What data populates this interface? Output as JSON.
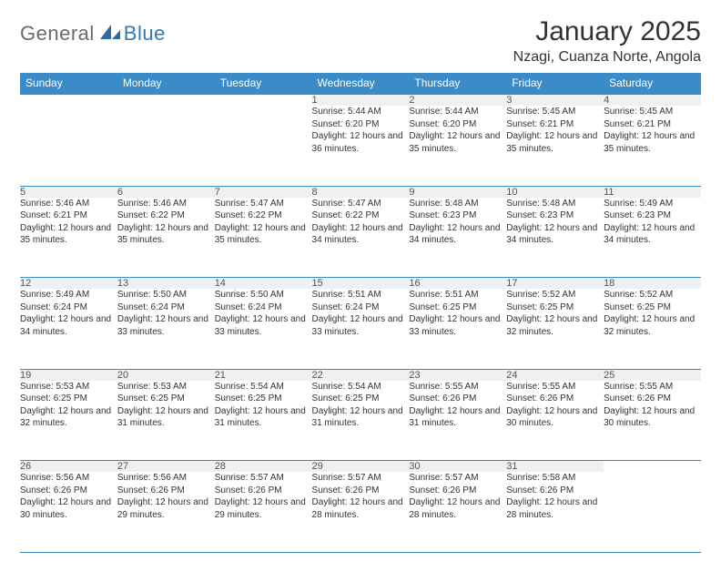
{
  "brand": {
    "general": "General",
    "blue": "Blue"
  },
  "colors": {
    "header_bg": "#3b8bc8",
    "header_text": "#ffffff",
    "daynum_bg": "#eef0f1",
    "border": "#3b8bc8",
    "title": "#333333",
    "logo_gray": "#6a6a6a",
    "logo_blue": "#3279b7"
  },
  "title": "January 2025",
  "location": "Nzagi, Cuanza Norte, Angola",
  "weekday_headers": [
    "Sunday",
    "Monday",
    "Tuesday",
    "Wednesday",
    "Thursday",
    "Friday",
    "Saturday"
  ],
  "weeks": [
    [
      null,
      null,
      null,
      {
        "day": "1",
        "sunrise": "Sunrise: 5:44 AM",
        "sunset": "Sunset: 6:20 PM",
        "daylight": "Daylight: 12 hours and 36 minutes."
      },
      {
        "day": "2",
        "sunrise": "Sunrise: 5:44 AM",
        "sunset": "Sunset: 6:20 PM",
        "daylight": "Daylight: 12 hours and 35 minutes."
      },
      {
        "day": "3",
        "sunrise": "Sunrise: 5:45 AM",
        "sunset": "Sunset: 6:21 PM",
        "daylight": "Daylight: 12 hours and 35 minutes."
      },
      {
        "day": "4",
        "sunrise": "Sunrise: 5:45 AM",
        "sunset": "Sunset: 6:21 PM",
        "daylight": "Daylight: 12 hours and 35 minutes."
      }
    ],
    [
      {
        "day": "5",
        "sunrise": "Sunrise: 5:46 AM",
        "sunset": "Sunset: 6:21 PM",
        "daylight": "Daylight: 12 hours and 35 minutes."
      },
      {
        "day": "6",
        "sunrise": "Sunrise: 5:46 AM",
        "sunset": "Sunset: 6:22 PM",
        "daylight": "Daylight: 12 hours and 35 minutes."
      },
      {
        "day": "7",
        "sunrise": "Sunrise: 5:47 AM",
        "sunset": "Sunset: 6:22 PM",
        "daylight": "Daylight: 12 hours and 35 minutes."
      },
      {
        "day": "8",
        "sunrise": "Sunrise: 5:47 AM",
        "sunset": "Sunset: 6:22 PM",
        "daylight": "Daylight: 12 hours and 34 minutes."
      },
      {
        "day": "9",
        "sunrise": "Sunrise: 5:48 AM",
        "sunset": "Sunset: 6:23 PM",
        "daylight": "Daylight: 12 hours and 34 minutes."
      },
      {
        "day": "10",
        "sunrise": "Sunrise: 5:48 AM",
        "sunset": "Sunset: 6:23 PM",
        "daylight": "Daylight: 12 hours and 34 minutes."
      },
      {
        "day": "11",
        "sunrise": "Sunrise: 5:49 AM",
        "sunset": "Sunset: 6:23 PM",
        "daylight": "Daylight: 12 hours and 34 minutes."
      }
    ],
    [
      {
        "day": "12",
        "sunrise": "Sunrise: 5:49 AM",
        "sunset": "Sunset: 6:24 PM",
        "daylight": "Daylight: 12 hours and 34 minutes."
      },
      {
        "day": "13",
        "sunrise": "Sunrise: 5:50 AM",
        "sunset": "Sunset: 6:24 PM",
        "daylight": "Daylight: 12 hours and 33 minutes."
      },
      {
        "day": "14",
        "sunrise": "Sunrise: 5:50 AM",
        "sunset": "Sunset: 6:24 PM",
        "daylight": "Daylight: 12 hours and 33 minutes."
      },
      {
        "day": "15",
        "sunrise": "Sunrise: 5:51 AM",
        "sunset": "Sunset: 6:24 PM",
        "daylight": "Daylight: 12 hours and 33 minutes."
      },
      {
        "day": "16",
        "sunrise": "Sunrise: 5:51 AM",
        "sunset": "Sunset: 6:25 PM",
        "daylight": "Daylight: 12 hours and 33 minutes."
      },
      {
        "day": "17",
        "sunrise": "Sunrise: 5:52 AM",
        "sunset": "Sunset: 6:25 PM",
        "daylight": "Daylight: 12 hours and 32 minutes."
      },
      {
        "day": "18",
        "sunrise": "Sunrise: 5:52 AM",
        "sunset": "Sunset: 6:25 PM",
        "daylight": "Daylight: 12 hours and 32 minutes."
      }
    ],
    [
      {
        "day": "19",
        "sunrise": "Sunrise: 5:53 AM",
        "sunset": "Sunset: 6:25 PM",
        "daylight": "Daylight: 12 hours and 32 minutes."
      },
      {
        "day": "20",
        "sunrise": "Sunrise: 5:53 AM",
        "sunset": "Sunset: 6:25 PM",
        "daylight": "Daylight: 12 hours and 31 minutes."
      },
      {
        "day": "21",
        "sunrise": "Sunrise: 5:54 AM",
        "sunset": "Sunset: 6:25 PM",
        "daylight": "Daylight: 12 hours and 31 minutes."
      },
      {
        "day": "22",
        "sunrise": "Sunrise: 5:54 AM",
        "sunset": "Sunset: 6:25 PM",
        "daylight": "Daylight: 12 hours and 31 minutes."
      },
      {
        "day": "23",
        "sunrise": "Sunrise: 5:55 AM",
        "sunset": "Sunset: 6:26 PM",
        "daylight": "Daylight: 12 hours and 31 minutes."
      },
      {
        "day": "24",
        "sunrise": "Sunrise: 5:55 AM",
        "sunset": "Sunset: 6:26 PM",
        "daylight": "Daylight: 12 hours and 30 minutes."
      },
      {
        "day": "25",
        "sunrise": "Sunrise: 5:55 AM",
        "sunset": "Sunset: 6:26 PM",
        "daylight": "Daylight: 12 hours and 30 minutes."
      }
    ],
    [
      {
        "day": "26",
        "sunrise": "Sunrise: 5:56 AM",
        "sunset": "Sunset: 6:26 PM",
        "daylight": "Daylight: 12 hours and 30 minutes."
      },
      {
        "day": "27",
        "sunrise": "Sunrise: 5:56 AM",
        "sunset": "Sunset: 6:26 PM",
        "daylight": "Daylight: 12 hours and 29 minutes."
      },
      {
        "day": "28",
        "sunrise": "Sunrise: 5:57 AM",
        "sunset": "Sunset: 6:26 PM",
        "daylight": "Daylight: 12 hours and 29 minutes."
      },
      {
        "day": "29",
        "sunrise": "Sunrise: 5:57 AM",
        "sunset": "Sunset: 6:26 PM",
        "daylight": "Daylight: 12 hours and 28 minutes."
      },
      {
        "day": "30",
        "sunrise": "Sunrise: 5:57 AM",
        "sunset": "Sunset: 6:26 PM",
        "daylight": "Daylight: 12 hours and 28 minutes."
      },
      {
        "day": "31",
        "sunrise": "Sunrise: 5:58 AM",
        "sunset": "Sunset: 6:26 PM",
        "daylight": "Daylight: 12 hours and 28 minutes."
      },
      null
    ]
  ]
}
